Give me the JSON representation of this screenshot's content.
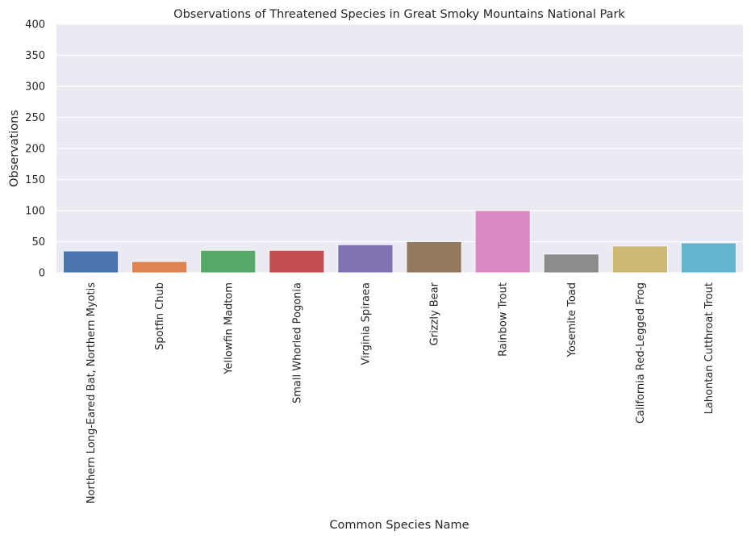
{
  "chart_data": {
    "type": "bar",
    "title": "Observations of Threatened Species in Great Smoky Mountains National Park",
    "xlabel": "Common Species Name",
    "ylabel": "Observations",
    "ylim": [
      0,
      400
    ],
    "yticks": [
      0,
      50,
      100,
      150,
      200,
      250,
      300,
      350,
      400
    ],
    "grid": true,
    "background_color": "#eaeaf2",
    "categories": [
      "Northern Long-Eared Bat, Northern Myotis",
      "Spotfin Chub",
      "Yellowfin Madtom",
      "Small Whorled Pogonia",
      "Virginia Spiraea",
      "Grizzly Bear",
      "Rainbow Trout",
      "Yosemite Toad",
      "California Red-Legged Frog",
      "Lahontan Cutthroat Trout"
    ],
    "values": [
      35,
      18,
      36,
      36,
      45,
      50,
      100,
      30,
      43,
      48
    ],
    "colors": [
      "#4c72b0",
      "#dd8452",
      "#55a868",
      "#c44e52",
      "#8172b3",
      "#937860",
      "#da8bc3",
      "#8c8c8c",
      "#ccb974",
      "#64b5cd"
    ]
  }
}
